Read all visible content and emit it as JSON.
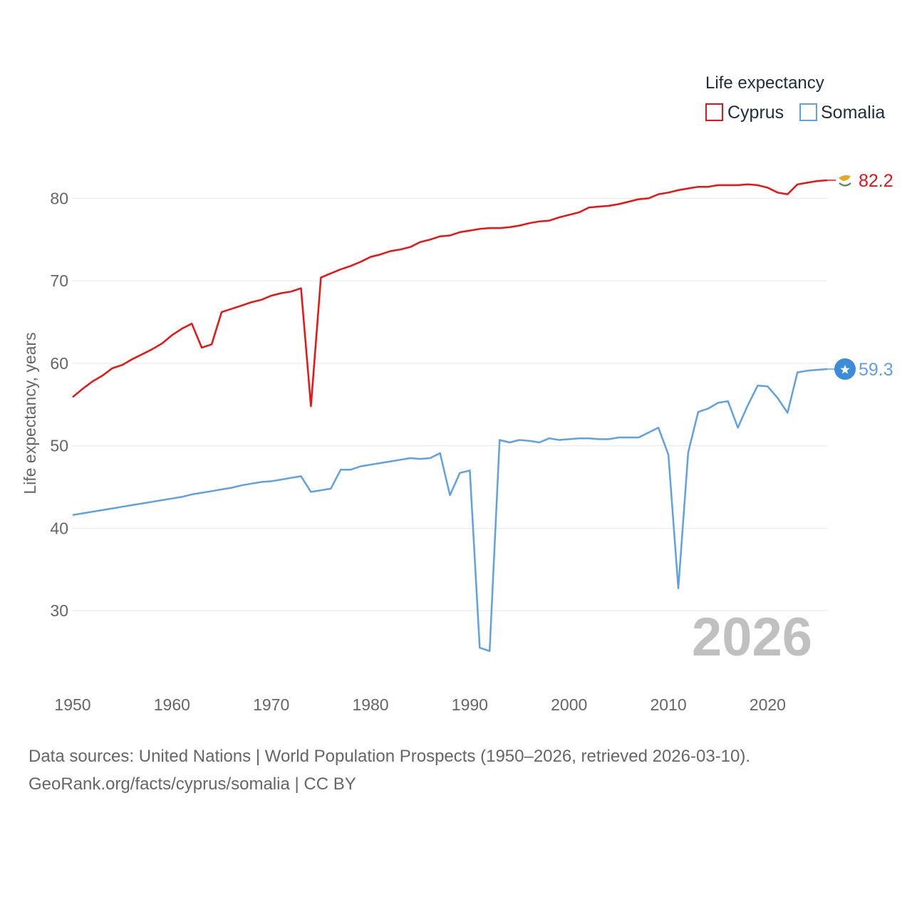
{
  "chart_data": {
    "type": "line",
    "title": "",
    "xlabel": "",
    "ylabel": "Life expectancy, years",
    "xlim": [
      1950,
      2026
    ],
    "ylim": [
      20.5,
      86
    ],
    "x_ticks": [
      1950,
      1960,
      1970,
      1980,
      1990,
      2000,
      2010,
      2020
    ],
    "y_ticks": [
      30,
      40,
      50,
      60,
      70,
      80
    ],
    "grid": true,
    "legend": {
      "title": "Life expectancy",
      "position": "top-right"
    },
    "year_stamp": "2026",
    "x": [
      1950,
      1951,
      1952,
      1953,
      1954,
      1955,
      1956,
      1957,
      1958,
      1959,
      1960,
      1961,
      1962,
      1963,
      1964,
      1965,
      1966,
      1967,
      1968,
      1969,
      1970,
      1971,
      1972,
      1973,
      1974,
      1975,
      1976,
      1977,
      1978,
      1979,
      1980,
      1981,
      1982,
      1983,
      1984,
      1985,
      1986,
      1987,
      1988,
      1989,
      1990,
      1991,
      1992,
      1993,
      1994,
      1995,
      1996,
      1997,
      1998,
      1999,
      2000,
      2001,
      2002,
      2003,
      2004,
      2005,
      2006,
      2007,
      2008,
      2009,
      2010,
      2011,
      2012,
      2013,
      2014,
      2015,
      2016,
      2017,
      2018,
      2019,
      2020,
      2021,
      2022,
      2023,
      2024,
      2025,
      2026
    ],
    "series": [
      {
        "name": "Cyprus",
        "color": "#ee1111",
        "end_label": "82.2",
        "end_icon": "cyprus-flag-icon",
        "values": [
          55.9,
          56.9,
          57.8,
          58.5,
          59.4,
          59.8,
          60.5,
          61.1,
          61.7,
          62.4,
          63.4,
          64.2,
          64.8,
          61.9,
          62.3,
          66.2,
          66.6,
          67.0,
          67.4,
          67.7,
          68.2,
          68.5,
          68.7,
          69.1,
          54.8,
          70.4,
          70.9,
          71.4,
          71.8,
          72.3,
          72.9,
          73.2,
          73.6,
          73.8,
          74.1,
          74.7,
          75.0,
          75.4,
          75.5,
          75.9,
          76.1,
          76.3,
          76.4,
          76.4,
          76.5,
          76.7,
          77.0,
          77.2,
          77.3,
          77.7,
          78.0,
          78.3,
          78.9,
          79.0,
          79.1,
          79.3,
          79.6,
          79.9,
          80.0,
          80.5,
          80.7,
          81.0,
          81.2,
          81.4,
          81.4,
          81.6,
          81.6,
          81.6,
          81.7,
          81.6,
          81.3,
          80.7,
          80.5,
          81.7,
          81.9,
          82.1,
          82.2
        ]
      },
      {
        "name": "Somalia",
        "color": "#5ea1e6",
        "end_label": "59.3",
        "end_icon": "somalia-flag-icon",
        "values": [
          41.6,
          41.8,
          42.0,
          42.2,
          42.4,
          42.6,
          42.8,
          43.0,
          43.2,
          43.4,
          43.6,
          43.8,
          44.1,
          44.3,
          44.5,
          44.7,
          44.9,
          45.2,
          45.4,
          45.6,
          45.7,
          45.9,
          46.1,
          46.3,
          44.4,
          44.6,
          44.8,
          47.1,
          47.1,
          47.5,
          47.7,
          47.9,
          48.1,
          48.3,
          48.5,
          48.4,
          48.5,
          49.1,
          44.0,
          46.7,
          47.0,
          25.5,
          25.1,
          50.7,
          50.4,
          50.7,
          50.6,
          50.4,
          50.9,
          50.7,
          50.8,
          50.9,
          50.9,
          50.8,
          50.8,
          51.0,
          51.0,
          51.0,
          51.6,
          52.2,
          48.9,
          32.7,
          49.2,
          54.1,
          54.5,
          55.2,
          55.4,
          52.2,
          54.9,
          57.3,
          57.2,
          55.8,
          54.0,
          58.9,
          59.1,
          59.2,
          59.3
        ]
      }
    ]
  },
  "footer": {
    "line1": "Data sources: United Nations | World Population Prospects (1950–2026, retrieved 2026-03-10).",
    "line2": "GeoRank.org/facts/cyprus/somalia | CC BY"
  }
}
